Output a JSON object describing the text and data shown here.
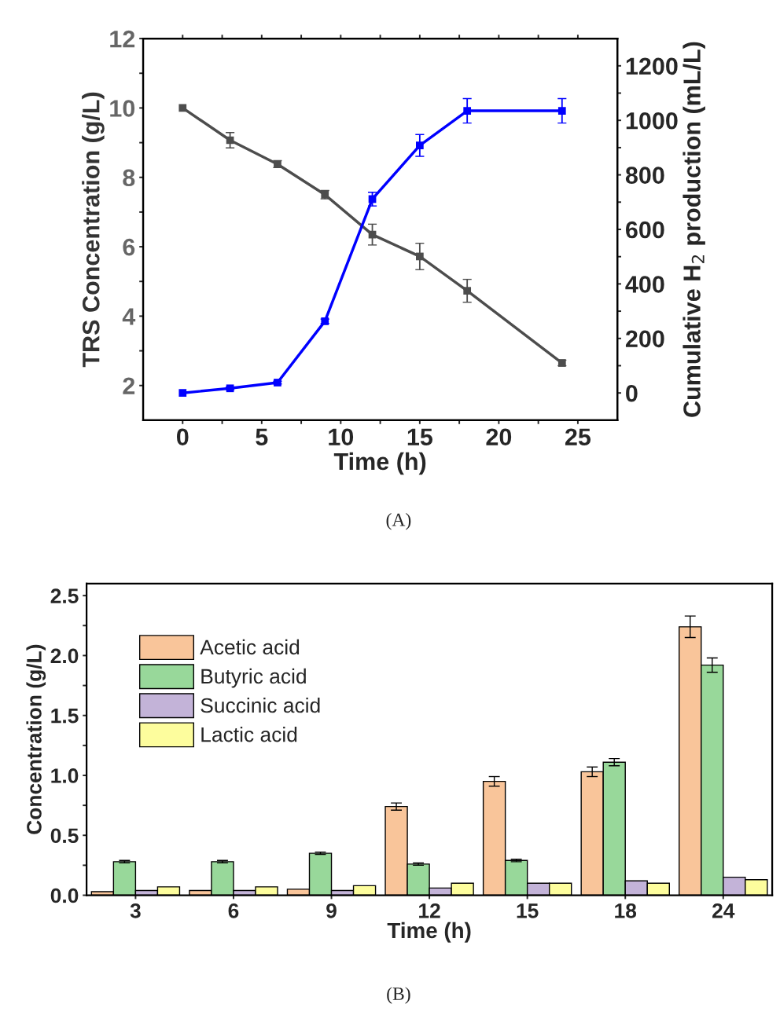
{
  "chart_data": [
    {
      "type": "line",
      "xlabel": "Time (h)",
      "ylabel": "TRS Concentration (g/L)",
      "y2label": "Cumulative H$_{2}$ production (mL/L)",
      "x": [
        0,
        3,
        6,
        9,
        12,
        15,
        18,
        24
      ],
      "marker": "square",
      "line_style": "solid",
      "grid": false,
      "series": [
        {
          "color": "#4d4d4d",
          "values": [
            10.0,
            9.07,
            8.38,
            7.5,
            6.35,
            5.72,
            4.73,
            2.65
          ],
          "errors": [
            null,
            0.22,
            0.1,
            0.12,
            0.3,
            0.38,
            0.33,
            0.08
          ]
        },
        {
          "color": "#0000ff",
          "axis": "y2",
          "values": [
            0,
            17,
            38,
            263,
            711,
            908,
            1035,
            1035
          ],
          "errors": [
            null,
            5,
            5,
            8,
            25,
            40,
            45,
            45
          ]
        }
      ],
      "xlim": [
        -2.5,
        27.5
      ],
      "xticks": [
        0,
        {
          "value": 2.5,
          "label": null
        },
        5,
        {
          "value": 7.5,
          "label": null
        },
        10,
        {
          "value": 12.5,
          "label": null
        },
        15,
        {
          "value": 17.5,
          "label": null
        },
        20,
        {
          "value": 22.5,
          "label": null
        },
        25
      ],
      "ylim": [
        1,
        12
      ],
      "yticks": [
        2,
        {
          "value": 3,
          "label": null
        },
        4,
        {
          "value": 5,
          "label": null
        },
        6,
        {
          "value": 7,
          "label": null
        },
        8,
        {
          "value": 9,
          "label": null
        },
        10,
        {
          "value": 11,
          "label": null
        },
        12
      ],
      "y2lim": [
        -100,
        1300
      ],
      "y2ticks": [
        0,
        {
          "value": 100,
          "label": null
        },
        200,
        {
          "value": 300,
          "label": null
        },
        400,
        {
          "value": 500,
          "label": null
        },
        600,
        {
          "value": 700,
          "label": null
        },
        800,
        {
          "value": 900,
          "label": null
        },
        1000,
        {
          "value": 1100,
          "label": null
        },
        1200
      ],
      "annotations": [
        "(A)"
      ]
    },
    {
      "type": "bar",
      "xlabel": "Time (h)",
      "ylabel": "Concentration (g/L)",
      "categories": [
        "3",
        "6",
        "9",
        "12",
        "15",
        "18",
        "24"
      ],
      "grid": false,
      "legend": "top left",
      "series": [
        {
          "name": "Acetic acid",
          "color": "#f9c59a",
          "values": [
            0.03,
            0.04,
            0.05,
            0.74,
            0.95,
            1.03,
            2.24
          ],
          "errors": [
            null,
            null,
            null,
            0.03,
            0.04,
            0.04,
            0.09
          ]
        },
        {
          "name": "Butyric acid",
          "color": "#98d89a",
          "values": [
            0.28,
            0.28,
            0.35,
            0.26,
            0.29,
            1.11,
            1.92
          ],
          "errors": [
            0.01,
            0.01,
            0.01,
            0.01,
            0.01,
            0.03,
            0.06
          ]
        },
        {
          "name": "Succinic acid",
          "color": "#c3b3d8",
          "values": [
            0.04,
            0.04,
            0.04,
            0.06,
            0.1,
            0.12,
            0.15
          ]
        },
        {
          "name": "Lactic acid",
          "color": "#fdfd9d",
          "values": [
            0.07,
            0.07,
            0.08,
            0.1,
            0.1,
            0.1,
            0.13
          ]
        }
      ],
      "ylim": [
        0,
        2.6
      ],
      "yticks": [
        {
          "value": 0,
          "label": "0.0"
        },
        {
          "value": 0.25,
          "label": null
        },
        {
          "value": 0.5,
          "label": "0.5"
        },
        {
          "value": 0.75,
          "label": null
        },
        {
          "value": 1,
          "label": "1.0"
        },
        {
          "value": 1.25,
          "label": null
        },
        {
          "value": 1.5,
          "label": "1.5"
        },
        {
          "value": 1.75,
          "label": null
        },
        {
          "value": 2,
          "label": "2.0"
        },
        {
          "value": 2.25,
          "label": null
        },
        {
          "value": 2.5,
          "label": "2.5"
        }
      ],
      "annotations": [
        "(B)"
      ]
    }
  ]
}
